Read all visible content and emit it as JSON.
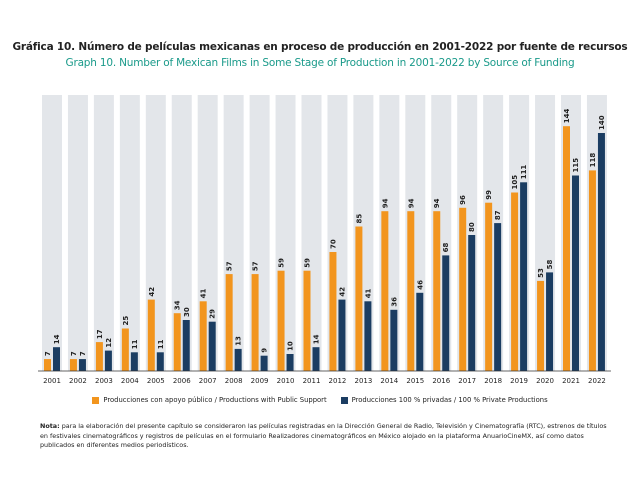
{
  "title_es": "Gráfica 10. Número de películas mexicanas en proceso de producción en 2001-2022 por fuente de recursos",
  "title_en": "Graph 10. Number of Mexican Films in Some Stage of Production in 2001-2022 by Source of Funding",
  "colors": {
    "public": "#f2951e",
    "private": "#1b3d62",
    "column_bg": "#e3e6ea"
  },
  "chart_data": {
    "type": "bar",
    "categories": [
      "2001",
      "2002",
      "2003",
      "2004",
      "2005",
      "2006",
      "2007",
      "2008",
      "2009",
      "2010",
      "2011",
      "2012",
      "2013",
      "2014",
      "2015",
      "2016",
      "2017",
      "2018",
      "2019",
      "2020",
      "2021",
      "2022"
    ],
    "series": [
      {
        "name": "Producciones con apoyo público / Productions with Public Support",
        "values": [
          7,
          7,
          17,
          25,
          42,
          34,
          41,
          57,
          57,
          59,
          59,
          70,
          85,
          94,
          94,
          94,
          96,
          99,
          105,
          53,
          144,
          118
        ]
      },
      {
        "name": "Producciones 100 % privadas / 100 % Private Productions",
        "values": [
          14,
          7,
          12,
          11,
          11,
          30,
          29,
          13,
          9,
          10,
          14,
          42,
          41,
          36,
          46,
          68,
          80,
          87,
          111,
          58,
          115,
          140
        ]
      }
    ],
    "ylim": [
      0,
      150
    ],
    "xlabel": "",
    "ylabel": ""
  },
  "legend": {
    "public": "Producciones con apoyo público / Productions with Public Support",
    "private": "Producciones 100 % privadas / 100 % Private Productions"
  },
  "note": {
    "label": "Nota:",
    "text": "para la elaboración del presente capítulo se consideraron las películas registradas en la Dirección General de Radio, Televisión y Cinematografía (RTC), estrenos de títulos en festivales cinematográficos y registros de películas en el formulario Realizadores cinematográficos en México alojado en la plataforma AnuarioCineMX, así como datos publicados en diferentes medios periodísticos."
  }
}
